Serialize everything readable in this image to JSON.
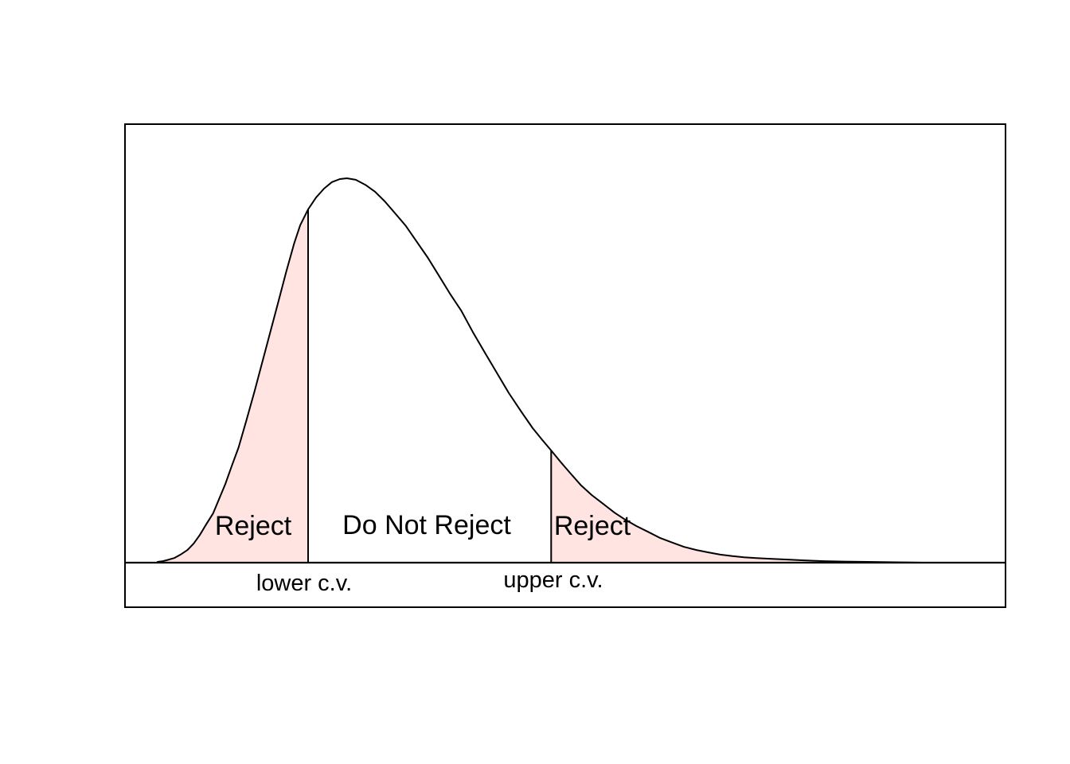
{
  "figure": {
    "background": "#FFFFFF"
  },
  "chart_data": {
    "type": "area",
    "title": "",
    "xlabel": "",
    "ylabel": "",
    "description": "Right-skewed sampling distribution density curve with two-tailed hypothesis-test rejection regions shaded at the lower and upper critical values",
    "axes": {
      "x_ticks": [],
      "y_ticks": [],
      "tick_labels_shown": false,
      "grid": false,
      "x_range_normalized": [
        0,
        1
      ],
      "y_range_normalized": [
        0,
        1
      ]
    },
    "colors": {
      "shade": "#FFE4E1",
      "line": "#000000",
      "text": "#000000"
    },
    "curve": {
      "points": [
        [
          0.037,
          0.002
        ],
        [
          0.043,
          0.004
        ],
        [
          0.05,
          0.008
        ],
        [
          0.056,
          0.012
        ],
        [
          0.063,
          0.021
        ],
        [
          0.071,
          0.033
        ],
        [
          0.078,
          0.05
        ],
        [
          0.085,
          0.072
        ],
        [
          0.092,
          0.099
        ],
        [
          0.1,
          0.128
        ],
        [
          0.107,
          0.166
        ],
        [
          0.114,
          0.205
        ],
        [
          0.121,
          0.25
        ],
        [
          0.129,
          0.3
        ],
        [
          0.138,
          0.371
        ],
        [
          0.147,
          0.445
        ],
        [
          0.156,
          0.522
        ],
        [
          0.165,
          0.6
        ],
        [
          0.174,
          0.677
        ],
        [
          0.183,
          0.756
        ],
        [
          0.192,
          0.83
        ],
        [
          0.199,
          0.878
        ],
        [
          0.208,
          0.919
        ],
        [
          0.217,
          0.95
        ],
        [
          0.226,
          0.973
        ],
        [
          0.235,
          0.99
        ],
        [
          0.244,
          0.998
        ],
        [
          0.252,
          1.0
        ],
        [
          0.262,
          0.996
        ],
        [
          0.273,
          0.983
        ],
        [
          0.284,
          0.965
        ],
        [
          0.295,
          0.94
        ],
        [
          0.306,
          0.911
        ],
        [
          0.319,
          0.876
        ],
        [
          0.331,
          0.836
        ],
        [
          0.344,
          0.793
        ],
        [
          0.357,
          0.745
        ],
        [
          0.369,
          0.7
        ],
        [
          0.382,
          0.655
        ],
        [
          0.395,
          0.6
        ],
        [
          0.409,
          0.545
        ],
        [
          0.423,
          0.491
        ],
        [
          0.436,
          0.441
        ],
        [
          0.45,
          0.393
        ],
        [
          0.463,
          0.35
        ],
        [
          0.474,
          0.319
        ],
        [
          0.484,
          0.292
        ],
        [
          0.495,
          0.261
        ],
        [
          0.506,
          0.232
        ],
        [
          0.518,
          0.201
        ],
        [
          0.53,
          0.176
        ],
        [
          0.543,
          0.153
        ],
        [
          0.556,
          0.13
        ],
        [
          0.568,
          0.112
        ],
        [
          0.581,
          0.095
        ],
        [
          0.595,
          0.079
        ],
        [
          0.608,
          0.064
        ],
        [
          0.622,
          0.052
        ],
        [
          0.635,
          0.041
        ],
        [
          0.649,
          0.033
        ],
        [
          0.662,
          0.027
        ],
        [
          0.676,
          0.021
        ],
        [
          0.69,
          0.017
        ],
        [
          0.703,
          0.014
        ],
        [
          0.717,
          0.012
        ],
        [
          0.735,
          0.01
        ],
        [
          0.753,
          0.008
        ],
        [
          0.771,
          0.006
        ],
        [
          0.794,
          0.004
        ],
        [
          0.816,
          0.003
        ],
        [
          0.843,
          0.002
        ],
        [
          0.875,
          0.001
        ],
        [
          0.907,
          0.0
        ],
        [
          0.943,
          0.0
        ],
        [
          0.964,
          0.0
        ]
      ]
    },
    "critical_values": [
      {
        "label": "lower c.v.",
        "x": 0.208,
        "curve_height": 0.919
      },
      {
        "label": "upper c.v.",
        "x": 0.484,
        "curve_height": 0.292
      }
    ],
    "regions": [
      {
        "label": "Reject",
        "x_start": 0.037,
        "x_end": 0.208,
        "shaded": true
      },
      {
        "label": "Do Not Reject",
        "x_start": 0.208,
        "x_end": 0.484,
        "shaded": false
      },
      {
        "label": "Reject",
        "x_start": 0.484,
        "x_end": 0.964,
        "shaded": true
      }
    ]
  }
}
